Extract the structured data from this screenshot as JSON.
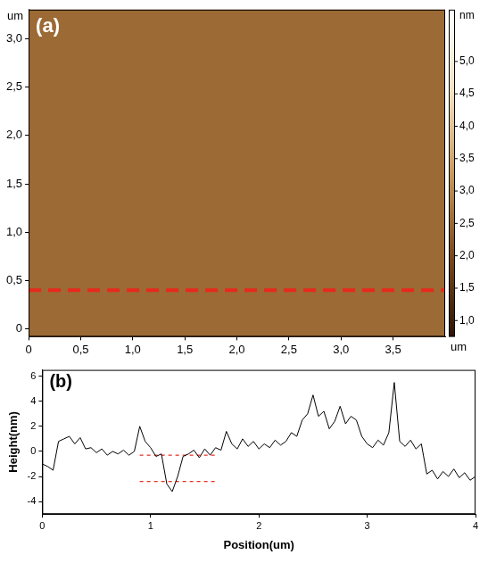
{
  "chart_data": [
    {
      "type": "image",
      "title": "(a)",
      "x_label": "um",
      "y_label": "um",
      "color": "#9c6a35",
      "xlim": [
        0,
        4.0
      ],
      "ylim": [
        -0.08,
        3.3
      ],
      "xticks": [
        0,
        {
          "value": 0.5,
          "label": "0,5"
        },
        {
          "value": 1,
          "label": "1,0"
        },
        {
          "value": 1.5,
          "label": "1,5"
        },
        {
          "value": 2,
          "label": "2,0"
        },
        {
          "value": 2.5,
          "label": "2,5"
        },
        {
          "value": 3,
          "label": "3,0"
        },
        {
          "value": 3.5,
          "label": "3,5"
        }
      ],
      "yticks": [
        0,
        {
          "value": 0.5,
          "label": "0,5"
        },
        {
          "value": 1,
          "label": "1,0"
        },
        {
          "value": 1.5,
          "label": "1,5"
        },
        {
          "value": 2,
          "label": "2,0"
        },
        {
          "value": 2.5,
          "label": "2,5"
        },
        {
          "value": 3,
          "label": "3,0"
        }
      ],
      "grid": false,
      "series": [
        {
          "x": [
            0,
            4.0
          ],
          "values": [
            0.4,
            0.4
          ],
          "color": "#e8281c",
          "line_style": "dashed"
        }
      ],
      "colorbar": {
        "label": "nm",
        "range": [
          0.75,
          5.8
        ],
        "colors": [
          "#2e1404",
          "#7a4a1c",
          "#c99a5e",
          "#f3e2c4",
          "#ffffff"
        ],
        "ticks": [
          {
            "value": 1,
            "label": "1,0"
          },
          {
            "value": 1.5,
            "label": "1,5"
          },
          {
            "value": 2,
            "label": "2,0"
          },
          {
            "value": 2.5,
            "label": "2,5"
          },
          {
            "value": 3,
            "label": "3,0"
          },
          {
            "value": 3.5,
            "label": "3,5"
          },
          {
            "value": 4,
            "label": "4,0"
          },
          {
            "value": 4.5,
            "label": "4,5"
          },
          {
            "value": 5,
            "label": "5,0"
          }
        ]
      }
    },
    {
      "type": "line",
      "title": "(b)",
      "x_label": "Position(um)",
      "y_label": "Height(nm)",
      "xlim": [
        0,
        4
      ],
      "ylim": [
        -5,
        6.5
      ],
      "xticks": [
        0,
        1,
        2,
        3,
        4
      ],
      "yticks": [
        -4,
        -2,
        0,
        2,
        4,
        6
      ],
      "grid": false,
      "series": [
        {
          "color": "#000000",
          "line_style": "solid",
          "x": [
            0,
            0.05,
            0.1,
            0.15,
            0.2,
            0.25,
            0.3,
            0.35,
            0.4,
            0.45,
            0.5,
            0.55,
            0.6,
            0.65,
            0.7,
            0.75,
            0.8,
            0.85,
            0.9,
            0.95,
            1,
            1.05,
            1.1,
            1.15,
            1.2,
            1.25,
            1.3,
            1.35,
            1.4,
            1.45,
            1.5,
            1.55,
            1.6,
            1.65,
            1.7,
            1.75,
            1.8,
            1.85,
            1.9,
            1.95,
            2,
            2.05,
            2.1,
            2.15,
            2.2,
            2.25,
            2.3,
            2.35,
            2.4,
            2.45,
            2.5,
            2.55,
            2.6,
            2.65,
            2.7,
            2.75,
            2.8,
            2.85,
            2.9,
            2.95,
            3,
            3.05,
            3.1,
            3.15,
            3.2,
            3.25,
            3.3,
            3.35,
            3.4,
            3.45,
            3.5,
            3.55,
            3.6,
            3.65,
            3.7,
            3.75,
            3.8,
            3.85,
            3.9,
            3.95,
            4
          ],
          "values": [
            -1.0,
            -1.2,
            -1.5,
            0.8,
            1.0,
            1.2,
            0.6,
            1.1,
            0.2,
            0.3,
            -0.1,
            0.2,
            -0.3,
            0.0,
            -0.2,
            0.1,
            -0.3,
            0.0,
            2.0,
            0.8,
            0.3,
            -0.4,
            -0.2,
            -2.6,
            -3.2,
            -2.0,
            -0.4,
            -0.2,
            0.1,
            -0.5,
            0.2,
            -0.3,
            0.3,
            0.1,
            1.6,
            0.6,
            0.2,
            1.0,
            0.4,
            0.8,
            0.2,
            0.6,
            0.3,
            0.9,
            0.5,
            0.8,
            1.5,
            1.2,
            2.5,
            3.0,
            4.5,
            2.8,
            3.2,
            1.8,
            2.4,
            3.6,
            2.2,
            2.8,
            2.5,
            1.2,
            0.6,
            0.3,
            0.9,
            0.5,
            1.5,
            5.5,
            0.8,
            0.4,
            0.9,
            0.2,
            0.6,
            -1.8,
            -1.5,
            -2.2,
            -1.6,
            -2.0,
            -1.4,
            -2.1,
            -1.7,
            -2.3,
            -2.0
          ]
        },
        {
          "color": "#e8281c",
          "line_style": "dashed",
          "x": [
            0.9,
            1.6
          ],
          "values": [
            -0.3,
            -0.3
          ]
        },
        {
          "color": "#e8281c",
          "line_style": "dashed",
          "x": [
            0.9,
            1.6
          ],
          "values": [
            -2.4,
            -2.4
          ]
        }
      ]
    }
  ]
}
